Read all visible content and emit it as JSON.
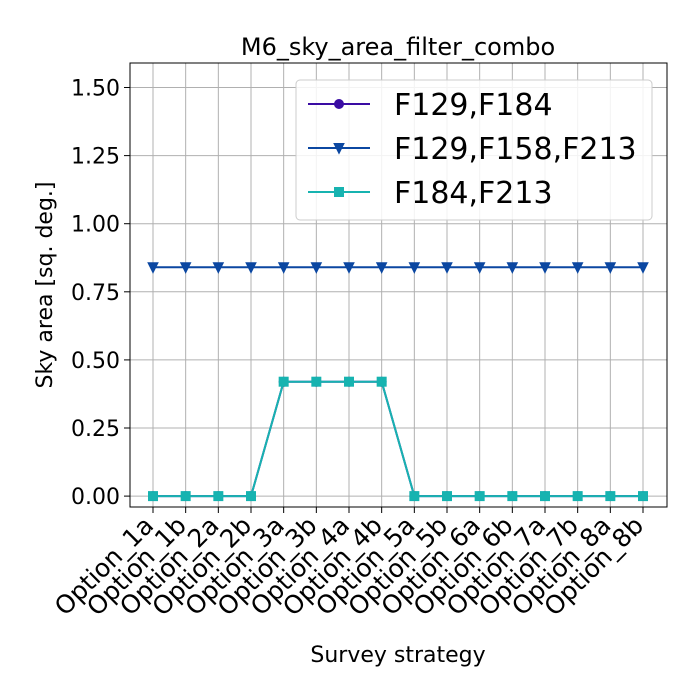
{
  "chart_data": {
    "type": "line",
    "title": "M6_sky_area_filter_combo",
    "xlabel": "Survey strategy",
    "ylabel": "Sky area [sq. deg.]",
    "categories": [
      "Option_1a",
      "Option_1b",
      "Option_2a",
      "Option_2b",
      "Option_3a",
      "Option_3b",
      "Option_4a",
      "Option_4b",
      "Option_5a",
      "Option_5b",
      "Option_6a",
      "Option_6b",
      "Option_7a",
      "Option_7b",
      "Option_8a",
      "Option_8b"
    ],
    "ylim": [
      -0.04,
      1.59
    ],
    "yticks": [
      "0.00",
      "0.25",
      "0.50",
      "0.75",
      "1.00",
      "1.25",
      "1.50"
    ],
    "grid": true,
    "legend_position": "top-right",
    "series": [
      {
        "name": "F129,F184",
        "color": "#3a0ca3",
        "marker": "circle",
        "values": [
          0,
          0,
          0,
          0,
          0.42,
          0.42,
          0.42,
          0.42,
          0,
          0,
          0,
          0,
          0,
          0,
          0,
          0
        ]
      },
      {
        "name": "F129,F158,F213",
        "color": "#0b47a1",
        "marker": "triangle-down",
        "values": [
          0.84,
          0.84,
          0.84,
          0.84,
          0.84,
          0.84,
          0.84,
          0.84,
          0.84,
          0.84,
          0.84,
          0.84,
          0.84,
          0.84,
          0.84,
          0.84
        ]
      },
      {
        "name": "F184,F213",
        "color": "#17b3b0",
        "marker": "square",
        "values": [
          0,
          0,
          0,
          0,
          0.42,
          0.42,
          0.42,
          0.42,
          0,
          0,
          0,
          0,
          0,
          0,
          0,
          0
        ]
      }
    ]
  }
}
